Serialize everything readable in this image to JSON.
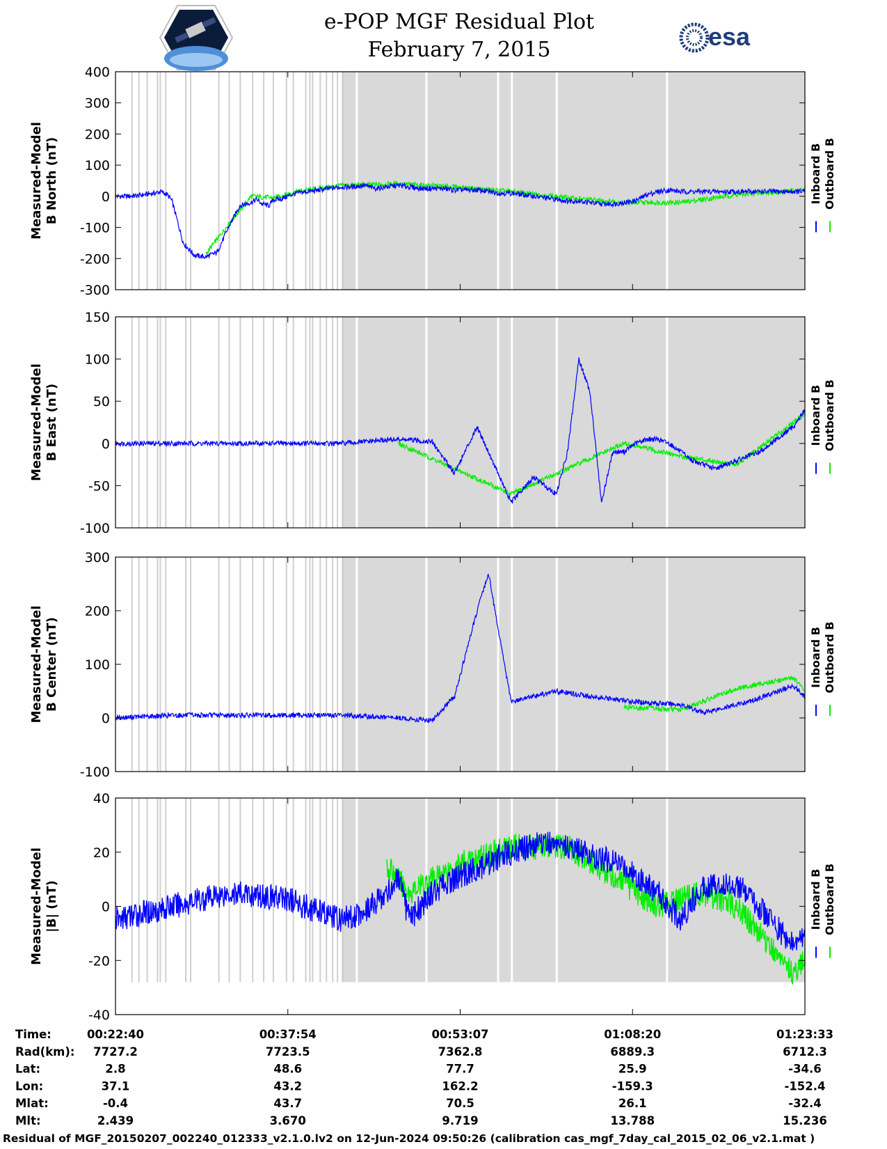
{
  "header": {
    "title": "e-POP MGF Residual Plot",
    "date": "February 7, 2015",
    "left_logo": "cassiope-mission-logo",
    "right_logo": "esa-logo",
    "right_logo_text": "esa"
  },
  "colors": {
    "inboard": "#0000ff",
    "outboard": "#00ee00",
    "shade": "#d9d9d9",
    "gap_line": "#ffffff"
  },
  "chart_data": [
    {
      "type": "line",
      "ylabel": [
        "Measured-Model",
        "B North (nT)"
      ],
      "ylim": [
        -300,
        400
      ],
      "yticks": [
        -300,
        -200,
        -100,
        0,
        100,
        200,
        300,
        400
      ],
      "legend": [
        "Inboard B",
        "Outboard B"
      ],
      "legend_placement": "right",
      "series": [
        {
          "name": "Inboard B",
          "x": [
            0,
            1,
            2,
            2.5,
            3,
            3.5,
            4,
            4.6,
            5,
            6,
            7,
            8,
            9,
            10,
            11,
            12,
            12.5,
            13,
            13.6,
            14,
            14.6,
            15.2,
            16,
            17,
            18,
            19,
            20,
            21,
            22,
            23,
            24,
            25,
            26,
            27,
            28,
            29,
            30,
            31,
            32,
            33,
            34,
            35,
            36,
            37,
            38,
            39,
            40,
            41,
            42,
            43,
            44,
            45,
            46,
            47,
            48,
            49,
            50,
            51,
            52,
            53,
            54,
            55,
            56,
            57,
            58,
            59,
            60,
            61
          ],
          "y": [
            0,
            0,
            2,
            5,
            8,
            10,
            15,
            5,
            -15,
            -150,
            -190,
            -195,
            -180,
            -100,
            -30,
            -20,
            -10,
            -25,
            -30,
            -10,
            -10,
            0,
            10,
            15,
            20,
            25,
            30,
            30,
            35,
            25,
            30,
            35,
            30,
            25,
            25,
            25,
            20,
            20,
            20,
            15,
            10,
            10,
            5,
            0,
            -5,
            -10,
            -15,
            -15,
            -20,
            -25,
            -25,
            -20,
            -15,
            5,
            15,
            20,
            15,
            15,
            15,
            15,
            15,
            15,
            15,
            15,
            15,
            15,
            15,
            15
          ]
        },
        {
          "name": "Outboard B",
          "x": [
            8,
            10,
            12,
            14,
            16,
            20,
            25,
            30,
            35,
            40,
            45,
            50,
            55,
            61
          ],
          "y": [
            -185,
            -90,
            0,
            -5,
            15,
            35,
            40,
            30,
            15,
            -5,
            -20,
            -20,
            5,
            20
          ]
        }
      ]
    },
    {
      "type": "line",
      "ylabel": [
        "Measured-Model",
        "B East (nT)"
      ],
      "ylim": [
        -100,
        150
      ],
      "yticks": [
        -100,
        -50,
        0,
        50,
        100,
        150
      ],
      "legend": [
        "Inboard B",
        "Outboard B"
      ],
      "legend_placement": "right",
      "series": [
        {
          "name": "Inboard B",
          "x": [
            0,
            5,
            10,
            15,
            20,
            25,
            28,
            30,
            32,
            33,
            35,
            37,
            39,
            40,
            41,
            42,
            43,
            44,
            45,
            46,
            47,
            48,
            49,
            50,
            51,
            53,
            55,
            57,
            60,
            61
          ],
          "y": [
            0,
            0,
            0,
            0,
            0,
            5,
            2,
            -35,
            20,
            -10,
            -70,
            -40,
            -60,
            -10,
            100,
            60,
            -70,
            -10,
            -10,
            0,
            5,
            5,
            0,
            -10,
            -20,
            -30,
            -20,
            -10,
            20,
            40
          ]
        },
        {
          "name": "Outboard B",
          "x": [
            25,
            35,
            45,
            50,
            55,
            60,
            61
          ],
          "y": [
            0,
            -60,
            0,
            -15,
            -25,
            25,
            35
          ]
        }
      ]
    },
    {
      "type": "line",
      "ylabel": [
        "Measured-Model",
        "B Center (nT)"
      ],
      "ylim": [
        -100,
        300
      ],
      "yticks": [
        -100,
        0,
        100,
        200,
        300
      ],
      "legend": [
        "Inboard B",
        "Outboard B"
      ],
      "legend_placement": "right",
      "series": [
        {
          "name": "Inboard B",
          "x": [
            0,
            5,
            10,
            15,
            20,
            25,
            28,
            30,
            32,
            33,
            34,
            35,
            37,
            39,
            42,
            46,
            50,
            52,
            56,
            60,
            61
          ],
          "y": [
            0,
            5,
            5,
            5,
            5,
            0,
            -5,
            40,
            200,
            270,
            150,
            30,
            40,
            50,
            40,
            30,
            25,
            10,
            30,
            60,
            40
          ]
        },
        {
          "name": "Outboard B",
          "x": [
            45,
            50,
            55,
            60,
            61
          ],
          "y": [
            20,
            15,
            55,
            75,
            50
          ]
        }
      ]
    },
    {
      "type": "line",
      "ylabel": [
        "Measured-Model",
        "|B| (nT)"
      ],
      "ylim": [
        -40,
        40
      ],
      "yticks": [
        -40,
        -20,
        0,
        20,
        40
      ],
      "legend": [
        "Inboard B",
        "Outboard B"
      ],
      "legend_placement": "right",
      "series": [
        {
          "name": "Inboard B",
          "x": [
            0,
            5,
            10,
            15,
            18,
            20,
            22,
            24,
            25,
            26,
            28,
            30,
            35,
            38,
            40,
            45,
            48,
            50,
            52,
            55,
            58,
            60,
            61
          ],
          "y": [
            -5,
            0,
            5,
            3,
            -2,
            -5,
            -2,
            5,
            10,
            -5,
            5,
            10,
            20,
            24,
            22,
            15,
            5,
            -5,
            8,
            8,
            -5,
            -15,
            -10
          ]
        },
        {
          "name": "Outboard B",
          "x": [
            24,
            26,
            28,
            30,
            35,
            40,
            48,
            52,
            55,
            58,
            60,
            61
          ],
          "y": [
            15,
            5,
            10,
            15,
            22,
            22,
            0,
            5,
            0,
            -15,
            -25,
            -20
          ]
        }
      ]
    }
  ],
  "x_axis": {
    "tick_labels": [
      "00:22:40",
      "00:37:54",
      "00:53:07",
      "01:08:20",
      "01:23:33"
    ],
    "rows": [
      {
        "label": "Time:",
        "values": [
          "00:22:40",
          "00:37:54",
          "00:53:07",
          "01:08:20",
          "01:23:33"
        ]
      },
      {
        "label": "Rad(km):",
        "values": [
          "7727.2",
          "7723.5",
          "7362.8",
          "6889.3",
          "6712.3"
        ]
      },
      {
        "label": "Lat:",
        "values": [
          "2.8",
          "48.6",
          "77.7",
          "25.9",
          "-34.6"
        ]
      },
      {
        "label": "Lon:",
        "values": [
          "37.1",
          "43.2",
          "162.2",
          "-159.3",
          "-152.4"
        ]
      },
      {
        "label": "Mlat:",
        "values": [
          "-0.4",
          "43.7",
          "70.5",
          "26.1",
          "-32.4"
        ]
      },
      {
        "label": "Mlt:",
        "values": [
          "2.439",
          "3.670",
          "9.719",
          "13.788",
          "15.236"
        ]
      }
    ]
  },
  "footer": "Residual of MGF_20150207_002240_012333_v2.1.0.lv2 on 12-Jun-2024 09:50:26 (calibration cas_mgf_7day_cal_2015_02_06_v2.1.mat )"
}
